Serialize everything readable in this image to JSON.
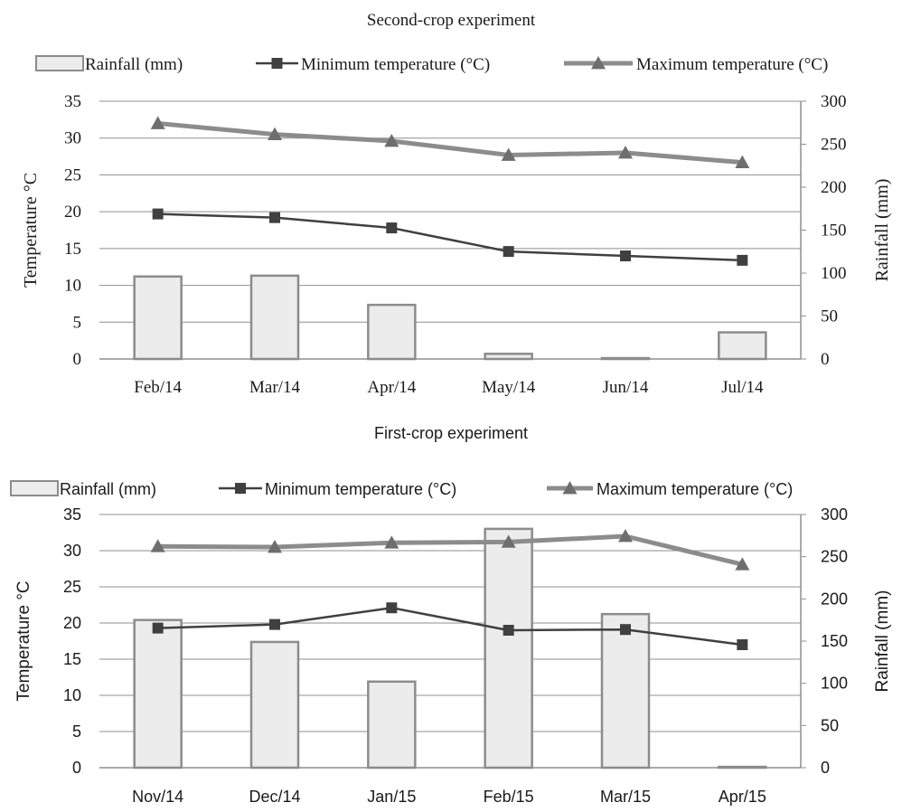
{
  "chart_data": [
    {
      "type": "bar",
      "title": "Second-crop experiment",
      "categories": [
        "Feb/14",
        "Mar/14",
        "Apr/14",
        "May/14",
        "Jun/14",
        "Jul/14"
      ],
      "ylabel_left": "Temperature °C",
      "ylabel_right": "Rainfall (mm)",
      "ylim_left": [
        0,
        35
      ],
      "ylim_right": [
        0,
        300
      ],
      "yticks_left": [
        "0",
        "5",
        "10",
        "15",
        "20",
        "25",
        "30",
        "35"
      ],
      "yticks_right": [
        "0",
        "50",
        "100",
        "150",
        "200",
        "250",
        "300"
      ],
      "legend_position": "top",
      "series": [
        {
          "name": "Rainfall (mm)",
          "kind": "bar",
          "axis": "right",
          "color": "#ececec",
          "stroke": "#8c8c8c",
          "values": [
            96,
            97,
            63,
            6,
            1,
            31
          ]
        },
        {
          "name": "Minimum temperature (°C)",
          "kind": "line",
          "marker": "square",
          "axis": "left",
          "color": "#404040",
          "values": [
            19.7,
            19.2,
            17.8,
            14.6,
            14.0,
            13.4
          ]
        },
        {
          "name": "Maximum temperature (°C)",
          "kind": "line",
          "marker": "triangle",
          "axis": "left",
          "color": "#8c8c8c",
          "values": [
            32.0,
            30.5,
            29.6,
            27.7,
            28.0,
            26.7
          ]
        }
      ]
    },
    {
      "type": "bar",
      "title": "First-crop experiment",
      "categories": [
        "Nov/14",
        "Dec/14",
        "Jan/15",
        "Feb/15",
        "Mar/15",
        "Apr/15"
      ],
      "ylabel_left": "Temperature °C",
      "ylabel_right": "Rainfall (mm)",
      "ylim_left": [
        0,
        35
      ],
      "ylim_right": [
        0,
        300
      ],
      "yticks_left": [
        "0",
        "5",
        "10",
        "15",
        "20",
        "25",
        "30",
        "35"
      ],
      "yticks_right": [
        "0",
        "50",
        "100",
        "150",
        "200",
        "250",
        "300"
      ],
      "legend_position": "top",
      "series": [
        {
          "name": "Rainfall (mm)",
          "kind": "bar",
          "axis": "right",
          "color": "#ececec",
          "stroke": "#8c8c8c",
          "values": [
            175,
            149,
            102,
            283,
            182,
            1
          ]
        },
        {
          "name": "Minimum temperature (°C)",
          "kind": "line",
          "marker": "square",
          "axis": "left",
          "color": "#404040",
          "values": [
            19.3,
            19.8,
            22.1,
            19.0,
            19.1,
            17.0
          ]
        },
        {
          "name": "Maximum temperature (°C)",
          "kind": "line",
          "marker": "triangle",
          "axis": "left",
          "color": "#8c8c8c",
          "values": [
            30.6,
            30.5,
            31.1,
            31.2,
            32.0,
            28.1
          ]
        }
      ]
    }
  ]
}
